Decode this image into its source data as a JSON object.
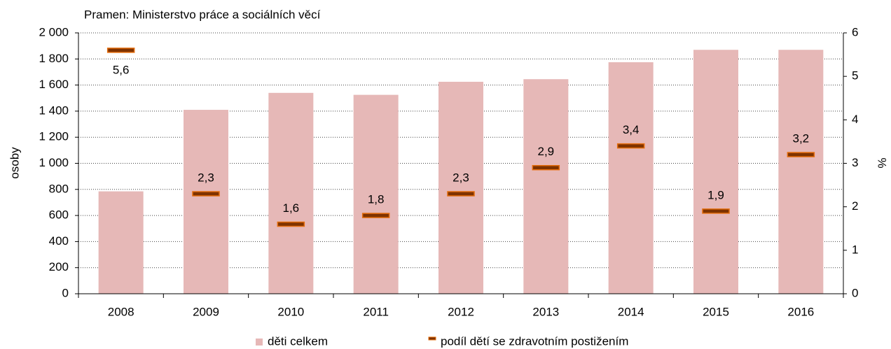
{
  "chart_data": {
    "type": "bar_line",
    "subtitle": "Pramen: Ministerstvo práce a sociálních věcí",
    "y_label": "osoby",
    "y2_label": "%",
    "categories": [
      "2008",
      "2009",
      "2010",
      "2011",
      "2012",
      "2013",
      "2014",
      "2015",
      "2016"
    ],
    "series": [
      {
        "name": "děti celkem",
        "color": "#e6b8b7",
        "type": "bar",
        "values": [
          785,
          1410,
          1540,
          1525,
          1625,
          1645,
          1775,
          1870,
          1870
        ]
      },
      {
        "name": "podíl dětí se zdravotním postižením",
        "color": "#7f3300",
        "type": "marker",
        "axis": "y2",
        "values": [
          5.6,
          2.3,
          1.6,
          1.8,
          2.3,
          2.9,
          3.4,
          1.9,
          3.2
        ],
        "value_labels": [
          "5,6",
          "2,3",
          "1,6",
          "1,8",
          "2,3",
          "2,9",
          "3,4",
          "1,9",
          "3,2"
        ]
      }
    ],
    "ylim": [
      0,
      2000
    ],
    "yticks": [
      0,
      200,
      400,
      600,
      800,
      {
        "value": 1000,
        "label": "1 000"
      },
      {
        "value": 1200,
        "label": "1 200"
      },
      {
        "value": 1400,
        "label": "1 400"
      },
      {
        "value": 1600,
        "label": "1 600"
      },
      {
        "value": 1800,
        "label": "1 800"
      },
      {
        "value": 2000,
        "label": "2 000"
      }
    ],
    "y2lim": [
      0,
      6
    ],
    "y2ticks": [
      0,
      1,
      2,
      3,
      4,
      5,
      6
    ],
    "grid": true,
    "legend": "bottom"
  }
}
